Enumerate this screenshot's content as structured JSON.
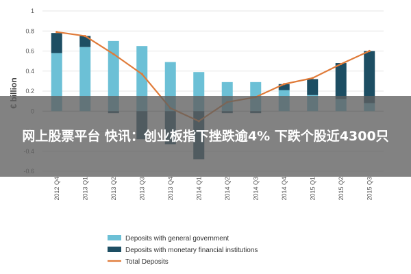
{
  "headline": "网上股票平台 快讯：创业板指下挫跌逾4% 下跌个股近4300只",
  "chart_data": {
    "type": "bar",
    "ylabel": "€ billion",
    "ylim": [
      -0.6,
      1
    ],
    "yticks": [
      "1",
      "0.8",
      "0.6",
      "0.4",
      "0.2",
      "0",
      "-0.2",
      "-0.4",
      "-0.6"
    ],
    "categories": [
      "2012 Q4",
      "2013 Q1",
      "2013 Q2",
      "2013 Q3",
      "2013 Q4",
      "2014 Q1",
      "2014 Q2",
      "2014 Q3",
      "2014 Q4",
      "2015 Q1",
      "2015 Q2",
      "2015 Q3"
    ],
    "series": [
      {
        "name": "Deposits with general government",
        "kind": "bar",
        "color": "#6cc0d6",
        "values": [
          0.58,
          0.64,
          0.7,
          0.65,
          0.49,
          0.39,
          0.29,
          0.29,
          0.21,
          0.16,
          0.12,
          0.08
        ]
      },
      {
        "name": "Deposits with monetary financial institutions",
        "kind": "bar",
        "color": "#1d4e63",
        "values": [
          0.2,
          0.11,
          -0.02,
          -0.28,
          -0.33,
          -0.48,
          -0.02,
          -0.02,
          0.06,
          0.16,
          0.36,
          0.52
        ]
      },
      {
        "name": "Total Deposits",
        "kind": "line",
        "color": "#e07b39",
        "values": [
          0.79,
          0.75,
          0.57,
          0.37,
          0.03,
          -0.1,
          0.09,
          0.14,
          0.27,
          0.33,
          0.47,
          0.6
        ]
      }
    ],
    "legend_position": "bottom"
  }
}
